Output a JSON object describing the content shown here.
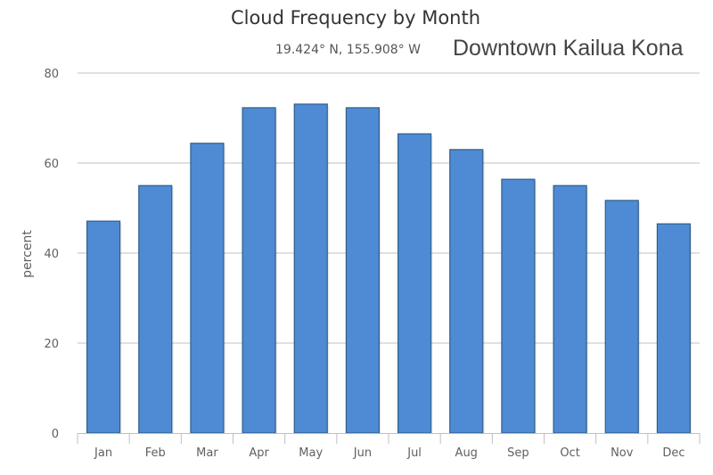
{
  "header": {
    "title": "Cloud Frequency by Month",
    "coordinates": "19.424° N, 155.908° W",
    "location": "Downtown Kailua Kona"
  },
  "colors": {
    "bar_fill": "#4f8bd4",
    "bar_border": "#2f5f8a",
    "grid": "#c0c0c0",
    "text": "#606060"
  },
  "chart_data": {
    "type": "bar",
    "title": "Cloud Frequency by Month",
    "subtitle": "19.424° N, 155.908° W  Downtown Kailua Kona",
    "xlabel": "",
    "ylabel": "percent",
    "ylim": [
      0,
      80
    ],
    "yticks": [
      0,
      20,
      40,
      60,
      80
    ],
    "grid": true,
    "legend": "none",
    "categories": [
      "Jan",
      "Feb",
      "Mar",
      "Apr",
      "May",
      "Jun",
      "Jul",
      "Aug",
      "Sep",
      "Oct",
      "Nov",
      "Dec"
    ],
    "values": [
      47.1,
      55.0,
      64.4,
      72.3,
      73.1,
      72.3,
      66.5,
      63.0,
      56.4,
      55.0,
      51.7,
      46.5
    ]
  }
}
